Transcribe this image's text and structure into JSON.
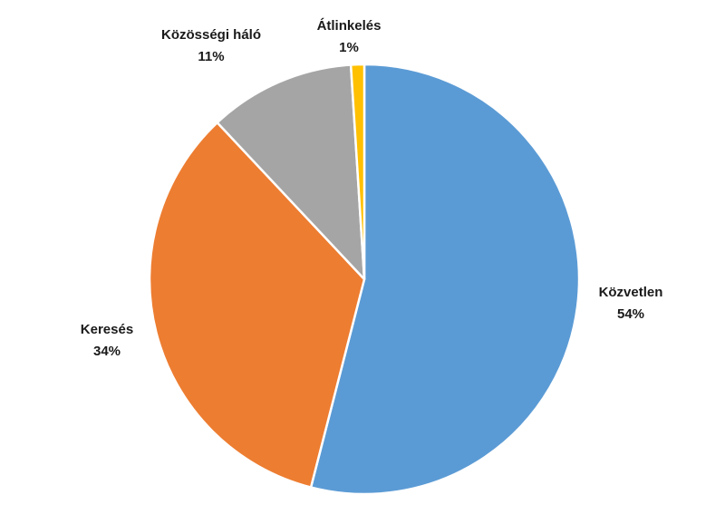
{
  "chart_data": {
    "type": "pie",
    "title": "",
    "slices": [
      {
        "label": "Közvetlen",
        "value": 54,
        "value_label": "54%",
        "color": "#5B9BD5"
      },
      {
        "label": "Keresés",
        "value": 34,
        "value_label": "34%",
        "color": "#ED7D31"
      },
      {
        "label": "Közösségi háló",
        "value": 11,
        "value_label": "11%",
        "color": "#A5A5A5"
      },
      {
        "label": "Átlinkelés",
        "value": 1,
        "value_label": "1%",
        "color": "#FFC000"
      }
    ],
    "legend": "none",
    "start_angle": "12 o'clock",
    "direction": "clockwise"
  }
}
